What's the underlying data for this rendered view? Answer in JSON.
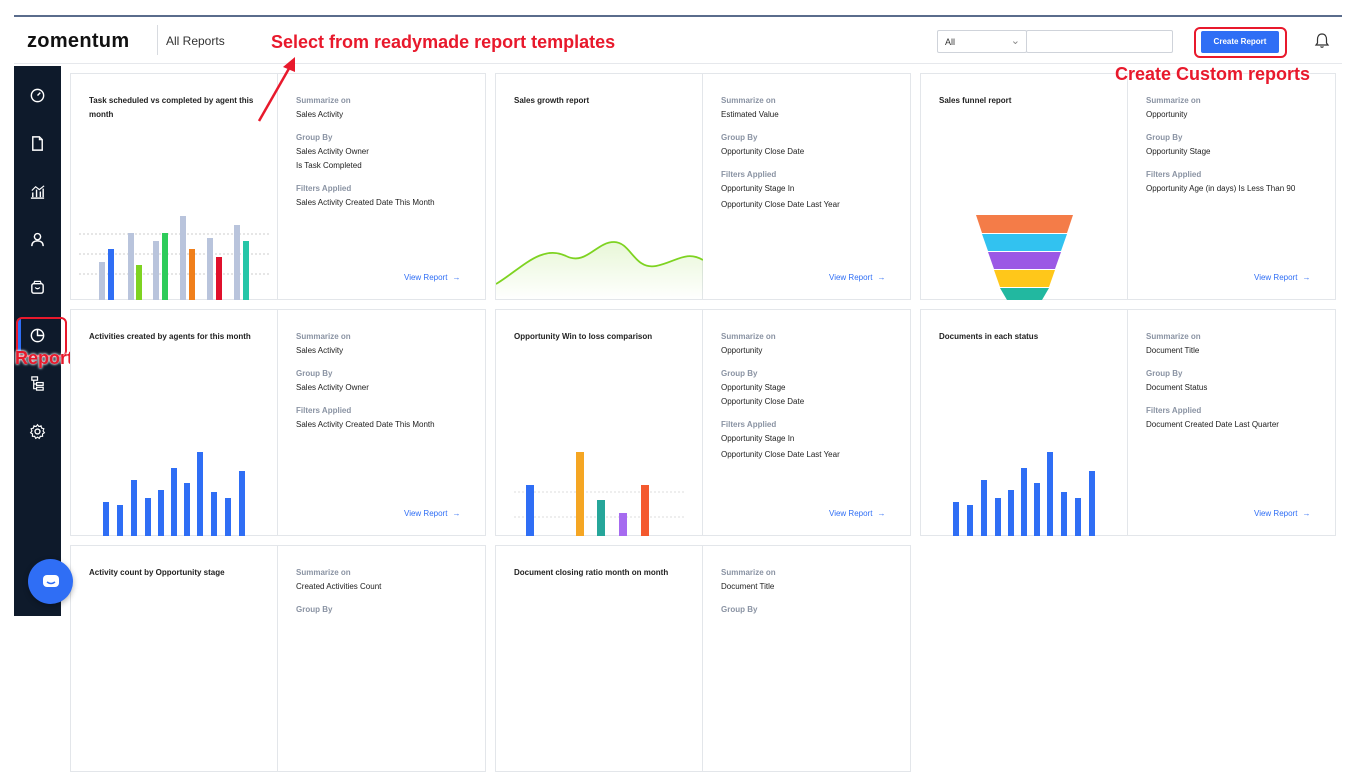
{
  "header": {
    "logo": "zomentum",
    "breadcrumb": "All Reports",
    "filter_select": "All",
    "search_value": "",
    "create_button": "Create Report"
  },
  "annotations": {
    "templates_note": "Select from readymade report templates",
    "custom_note": "Create Custom reports",
    "reports_note": "Reports"
  },
  "sidebar": {
    "items": [
      {
        "icon": "dashboard-icon"
      },
      {
        "icon": "document-icon"
      },
      {
        "icon": "chart-icon"
      },
      {
        "icon": "user-icon"
      },
      {
        "icon": "box-icon"
      },
      {
        "icon": "reports-pie-icon"
      },
      {
        "icon": "hierarchy-icon"
      },
      {
        "icon": "settings-icon"
      }
    ]
  },
  "labels": {
    "summarize": "Summarize on",
    "group_by": "Group By",
    "filters": "Filters Applied",
    "view_report": "View Report"
  },
  "cards": [
    {
      "title": "Task scheduled vs completed by agent this month",
      "summarize": "Sales Activity",
      "group_by": [
        "Sales Activity Owner",
        "Is Task Completed"
      ],
      "filters": [
        "Sales Activity Created Date This Month"
      ]
    },
    {
      "title": "Sales growth report",
      "summarize": "Estimated Value",
      "group_by": [
        "Opportunity Close Date"
      ],
      "filters": [
        "Opportunity Stage In",
        "Opportunity Close Date Last Year"
      ]
    },
    {
      "title": "Sales funnel report",
      "summarize": "Opportunity",
      "group_by": [
        "Opportunity Stage"
      ],
      "filters": [
        "Opportunity Age (in days) Is Less Than 90"
      ]
    },
    {
      "title": "Activities created by agents for this month",
      "summarize": "Sales Activity",
      "group_by": [
        "Sales Activity Owner"
      ],
      "filters": [
        "Sales Activity Created Date This Month"
      ]
    },
    {
      "title": "Opportunity Win to loss comparison",
      "summarize": "Opportunity",
      "group_by": [
        "Opportunity Stage",
        "Opportunity Close Date"
      ],
      "filters": [
        "Opportunity Stage In",
        "Opportunity Close Date Last Year"
      ]
    },
    {
      "title": "Documents in each status",
      "summarize": "Document Title",
      "group_by": [
        "Document Status"
      ],
      "filters": [
        "Document Created Date Last Quarter"
      ]
    },
    {
      "title": "Activity count by Opportunity stage",
      "summarize": "Created Activities Count",
      "group_by": [],
      "filters": []
    },
    {
      "title": "Document closing ratio month on month",
      "summarize": "Document Title",
      "group_by": [],
      "filters": []
    }
  ],
  "colors": {
    "primary": "#2f6ef5",
    "sidebar": "#0e1a2b",
    "annotation": "#e8192c"
  }
}
